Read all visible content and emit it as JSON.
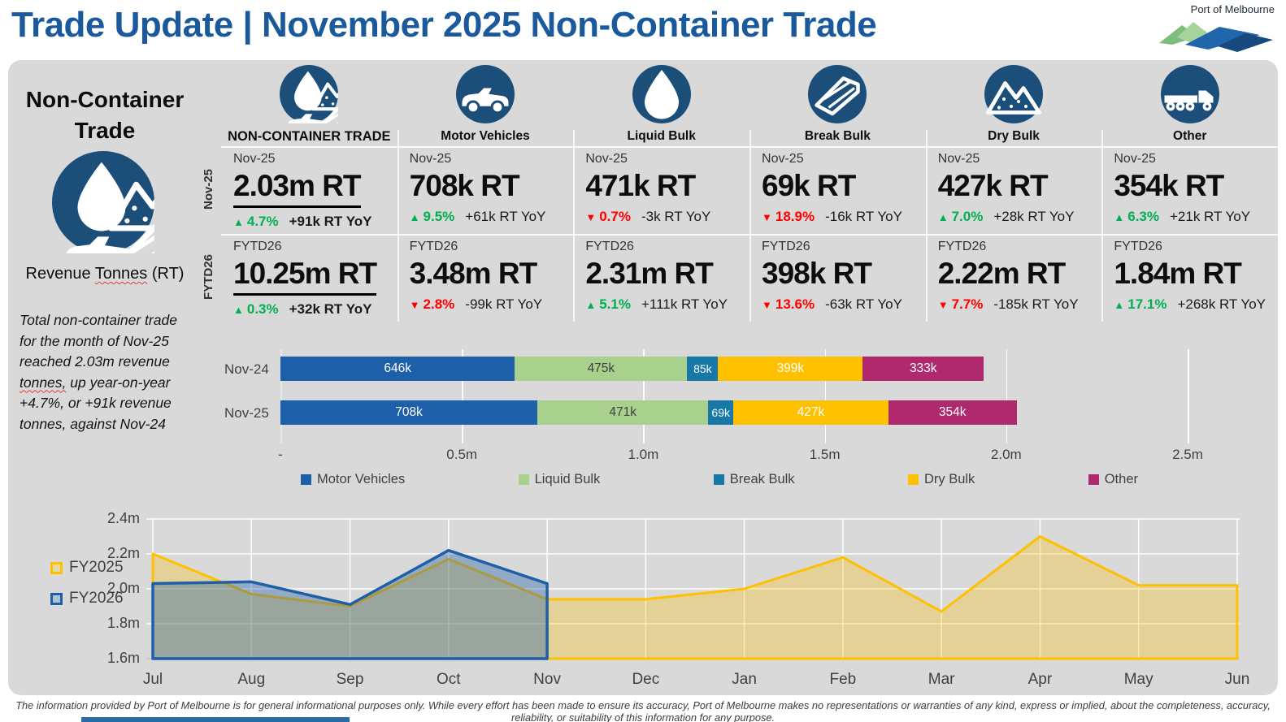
{
  "header": {
    "title": "Trade Update | November 2025 Non-Container Trade",
    "logo_text": "Port of Melbourne"
  },
  "sidebar": {
    "title": "Non-Container Trade",
    "unit_pre": "Revenue ",
    "unit_squiggle": "Tonnes",
    "unit_post": " (RT)",
    "summary_pre": "Total non-container trade for the month of Nov-25 reached 2.03m revenue ",
    "summary_squiggle": "tonnes,",
    "summary_post": " up year-on-year +4.7%, or +91k revenue tonnes, against Nov-24"
  },
  "row_labels": {
    "monthly": "Nov-25",
    "fytd": "FYTD26"
  },
  "categories": [
    {
      "label": "NON-CONTAINER TRADE",
      "icon": "noncontainer",
      "emphasis": true,
      "monthly": {
        "period": "Nov-25",
        "value": "2.03m RT",
        "direction": "up",
        "pct": "4.7%",
        "yoy": "+91k RT YoY"
      },
      "fytd": {
        "period": "FYTD26",
        "value": "10.25m RT",
        "direction": "up",
        "pct": "0.3%",
        "yoy": "+32k RT YoY"
      }
    },
    {
      "label": "Motor Vehicles",
      "icon": "car",
      "emphasis": false,
      "monthly": {
        "period": "Nov-25",
        "value": "708k RT",
        "direction": "up",
        "pct": "9.5%",
        "yoy": "+61k RT YoY"
      },
      "fytd": {
        "period": "FYTD26",
        "value": "3.48m RT",
        "direction": "down",
        "pct": "2.8%",
        "yoy": "-99k RT YoY"
      }
    },
    {
      "label": "Liquid Bulk",
      "icon": "droplet",
      "emphasis": false,
      "monthly": {
        "period": "Nov-25",
        "value": "471k RT",
        "direction": "down",
        "pct": "0.7%",
        "yoy": "-3k RT YoY"
      },
      "fytd": {
        "period": "FYTD26",
        "value": "2.31m RT",
        "direction": "up",
        "pct": "5.1%",
        "yoy": "+111k RT YoY"
      }
    },
    {
      "label": "Break Bulk",
      "icon": "beam",
      "emphasis": false,
      "monthly": {
        "period": "Nov-25",
        "value": "69k RT",
        "direction": "down",
        "pct": "18.9%",
        "yoy": "-16k RT YoY"
      },
      "fytd": {
        "period": "FYTD26",
        "value": "398k RT",
        "direction": "down",
        "pct": "13.6%",
        "yoy": "-63k RT YoY"
      }
    },
    {
      "label": "Dry Bulk",
      "icon": "mountains",
      "emphasis": false,
      "monthly": {
        "period": "Nov-25",
        "value": "427k RT",
        "direction": "up",
        "pct": "7.0%",
        "yoy": "+28k RT YoY"
      },
      "fytd": {
        "period": "FYTD26",
        "value": "2.22m RT",
        "direction": "down",
        "pct": "7.7%",
        "yoy": "-185k RT YoY"
      }
    },
    {
      "label": "Other",
      "icon": "truck",
      "emphasis": false,
      "monthly": {
        "period": "Nov-25",
        "value": "354k RT",
        "direction": "up",
        "pct": "6.3%",
        "yoy": "+21k RT YoY"
      },
      "fytd": {
        "period": "FYTD26",
        "value": "1.84m RT",
        "direction": "up",
        "pct": "17.1%",
        "yoy": "+268k RT YoY"
      }
    }
  ],
  "colors": {
    "title_blue": "#1a5a9c",
    "icon_navy": "#1b4e79",
    "panel_gray": "#d9d9d9",
    "up_green": "#00b050",
    "down_red": "#ff0000"
  },
  "chart_data": [
    {
      "type": "bar",
      "stacked": true,
      "orientation": "horizontal",
      "unit": "thousand RT",
      "categories": [
        "Nov-24",
        "Nov-25"
      ],
      "series": [
        {
          "name": "Motor Vehicles",
          "color": "#1e5fa9",
          "label_color": "#ffffff",
          "values": [
            646,
            708
          ],
          "labels": [
            "646k",
            "708k"
          ]
        },
        {
          "name": "Liquid Bulk",
          "color": "#a9d18e",
          "label_color": "#404040",
          "values": [
            475,
            471
          ],
          "labels": [
            "475k",
            "471k"
          ]
        },
        {
          "name": "Break Bulk",
          "color": "#1878a8",
          "label_color": "#ffffff",
          "values": [
            85,
            69
          ],
          "labels": [
            "85k",
            "69k"
          ]
        },
        {
          "name": "Dry Bulk",
          "color": "#ffc000",
          "label_color": "#ffffff",
          "values": [
            399,
            427
          ],
          "labels": [
            "399k",
            "427k"
          ]
        },
        {
          "name": "Other",
          "color": "#b0286e",
          "label_color": "#ffffff",
          "values": [
            333,
            354
          ],
          "labels": [
            "333k",
            "354k"
          ]
        }
      ],
      "xlim": [
        0,
        2500
      ],
      "xticks": [
        "-",
        "0.5m",
        "1.0m",
        "1.5m",
        "2.0m",
        "2.5m"
      ],
      "legend_position": "bottom",
      "grid": "vertical"
    },
    {
      "type": "area",
      "x": [
        "Jul",
        "Aug",
        "Sep",
        "Oct",
        "Nov",
        "Dec",
        "Jan",
        "Feb",
        "Mar",
        "Apr",
        "May",
        "Jun"
      ],
      "ylim": [
        1.6,
        2.4
      ],
      "yticks": [
        "1.6m",
        "1.8m",
        "2.0m",
        "2.2m",
        "2.4m"
      ],
      "unit": "million RT",
      "series": [
        {
          "name": "FY2025",
          "color": "#ffc000",
          "fill": "rgba(255,192,0,0.30)",
          "legend_fill": "#e5d9a8",
          "values": [
            2.2,
            1.97,
            1.9,
            2.17,
            1.94,
            1.94,
            2.0,
            2.18,
            1.87,
            2.3,
            2.02,
            2.02
          ]
        },
        {
          "name": "FY2026",
          "color": "#1f5fa8",
          "fill": "rgba(31,95,168,0.38)",
          "legend_fill": "#aec4dc",
          "values": [
            2.03,
            2.04,
            1.91,
            2.22,
            2.03
          ]
        }
      ],
      "legend_position": "left",
      "grid": "both"
    }
  ],
  "footer": {
    "disclaimer": "The information provided by Port of Melbourne is for general informational purposes only. While every effort has been made to ensure its accuracy, Port of Melbourne makes no representations or warranties of any kind, express or implied, about the completeness, accuracy, reliability, or suitability of this information for any purpose."
  }
}
